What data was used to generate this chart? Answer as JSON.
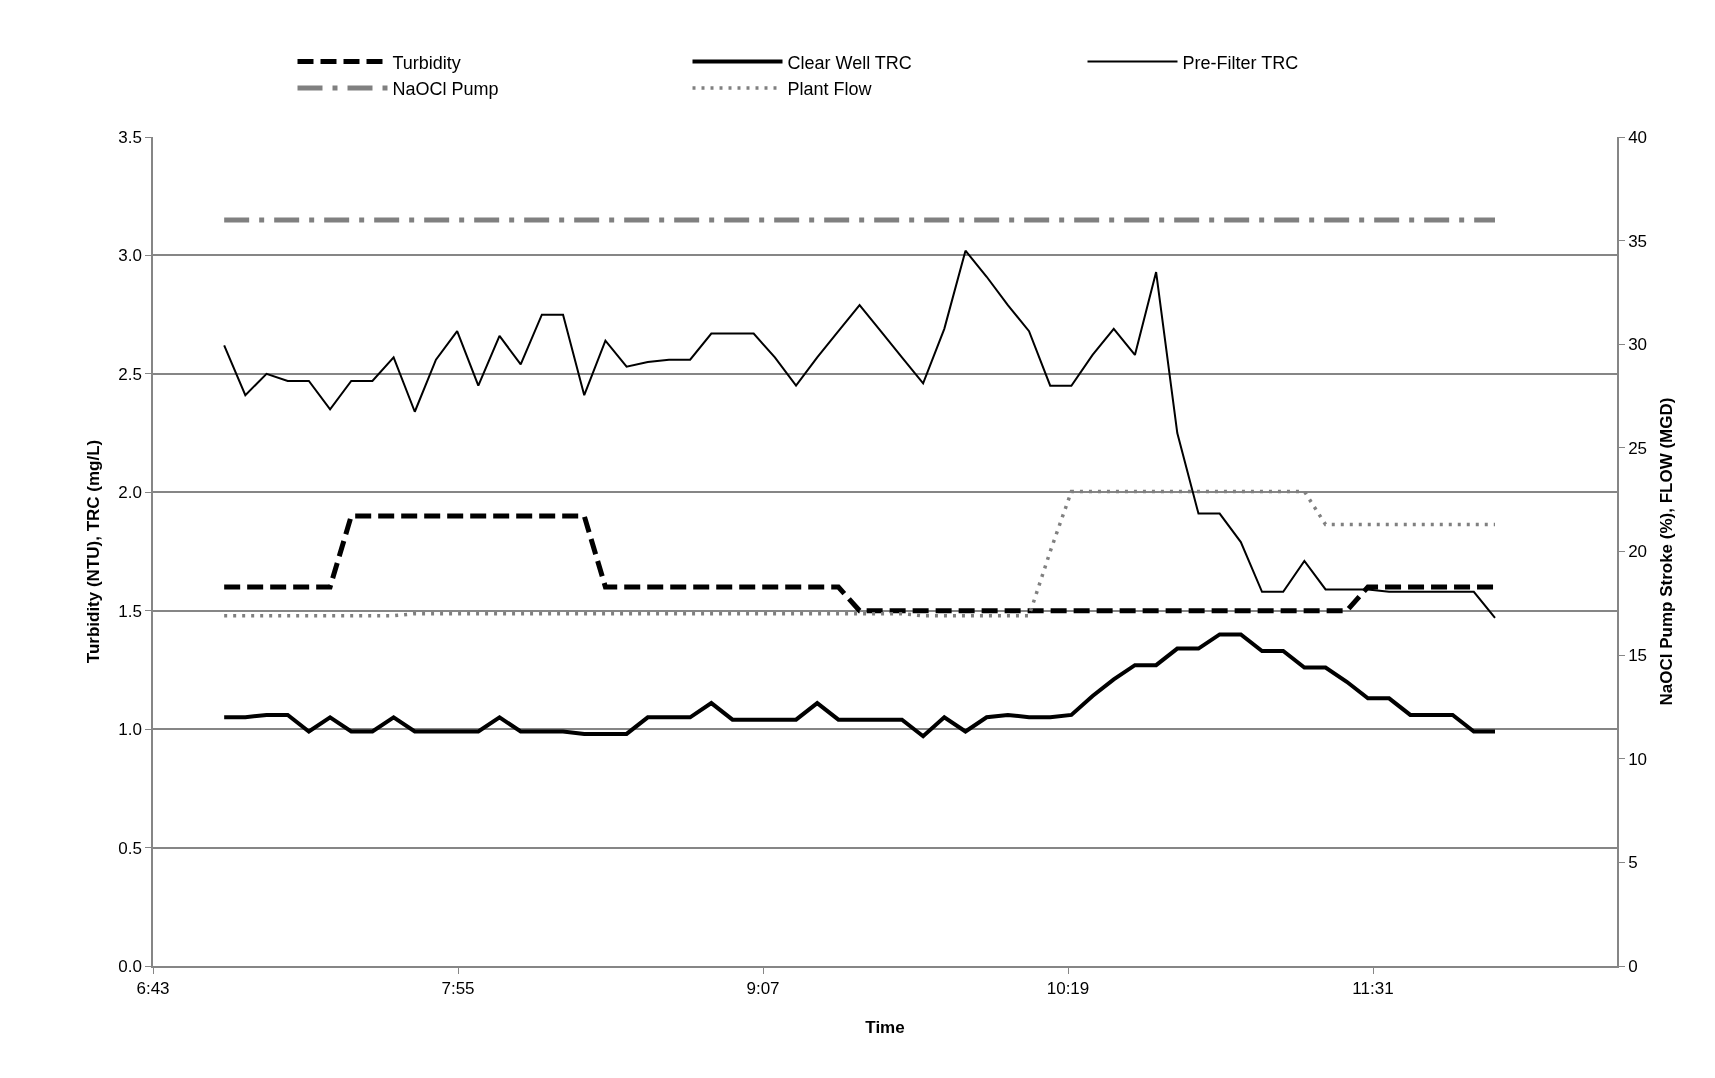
{
  "chart_data": {
    "type": "line",
    "xlabel": "Time",
    "ylabel": "Turbidity (NTU), TRC (mg/L)",
    "y2label": "NaOCl Pump Stroke (%), FLOW (MGD)",
    "x": [
      7,
      7.0833,
      7.1667,
      7.25,
      7.3333,
      7.4167,
      7.5,
      7.5833,
      7.6667,
      7.75,
      7.8333,
      7.9167,
      8,
      8.0833,
      8.1667,
      8.25,
      8.3333,
      8.4167,
      8.5,
      8.5833,
      8.6667,
      8.75,
      8.8333,
      8.9167,
      9,
      9.0833,
      9.1667,
      9.25,
      9.3333,
      9.4167,
      9.5,
      9.5833,
      9.6667,
      9.75,
      9.8333,
      9.9167,
      10,
      10.0833,
      10.1667,
      10.25,
      10.3333,
      10.4167,
      10.5,
      10.5833,
      10.6667,
      10.75,
      10.8333,
      10.9167,
      11,
      11.0833,
      11.1667,
      11.25,
      11.3333,
      11.4167,
      11.5,
      11.5833,
      11.6667,
      11.75,
      11.8333,
      11.9167,
      12
    ],
    "xlim": [
      6.72,
      12.48
    ],
    "xticks": [
      {
        "value": 6.72,
        "label": "6:43"
      },
      {
        "value": 7.92,
        "label": "7:55"
      },
      {
        "value": 9.12,
        "label": "9:07"
      },
      {
        "value": 10.32,
        "label": "10:19"
      },
      {
        "value": 11.52,
        "label": "11:31"
      }
    ],
    "ylim": [
      0,
      3.5
    ],
    "yticks": [
      {
        "value": 0,
        "label": "0.0"
      },
      {
        "value": 0.5,
        "label": "0.5"
      },
      {
        "value": 1,
        "label": "1.0"
      },
      {
        "value": 1.5,
        "label": "1.5"
      },
      {
        "value": 2,
        "label": "2.0"
      },
      {
        "value": 2.5,
        "label": "2.5"
      },
      {
        "value": 3,
        "label": "3.0"
      },
      {
        "value": 3.5,
        "label": "3.5"
      }
    ],
    "y2lim": [
      0,
      40
    ],
    "y2ticks": [
      0,
      5,
      10,
      15,
      20,
      25,
      30,
      35,
      40
    ],
    "grid": "y",
    "legend": "top",
    "marker": "none",
    "series": [
      {
        "name": "Turbidity",
        "color": "#000000",
        "line_style": "dashed",
        "values": [
          1.6,
          1.6,
          1.6,
          1.6,
          1.6,
          1.6,
          1.9,
          1.9,
          1.9,
          1.9,
          1.9,
          1.9,
          1.9,
          1.9,
          1.9,
          1.9,
          1.9,
          1.9,
          1.6,
          1.6,
          1.6,
          1.6,
          1.6,
          1.6,
          1.6,
          1.6,
          1.6,
          1.6,
          1.6,
          1.6,
          1.5,
          1.5,
          1.5,
          1.5,
          1.5,
          1.5,
          1.5,
          1.5,
          1.5,
          1.5,
          1.5,
          1.5,
          1.5,
          1.5,
          1.5,
          1.5,
          1.5,
          1.5,
          1.5,
          1.5,
          1.5,
          1.5,
          1.5,
          1.5,
          1.6,
          1.6,
          1.6,
          1.6,
          1.6,
          1.6,
          1.6
        ]
      },
      {
        "name": "Clear Well TRC",
        "color": "#000000",
        "line_style": "solid",
        "values": [
          1.05,
          1.05,
          1.06,
          1.06,
          0.99,
          1.05,
          0.99,
          0.99,
          1.05,
          0.99,
          0.99,
          0.99,
          0.99,
          1.05,
          0.99,
          0.99,
          0.99,
          0.98,
          0.98,
          0.98,
          1.05,
          1.05,
          1.05,
          1.11,
          1.04,
          1.04,
          1.04,
          1.04,
          1.11,
          1.04,
          1.04,
          1.04,
          1.04,
          0.97,
          1.05,
          0.99,
          1.05,
          1.06,
          1.05,
          1.05,
          1.06,
          1.14,
          1.21,
          1.27,
          1.27,
          1.34,
          1.34,
          1.4,
          1.4,
          1.33,
          1.33,
          1.26,
          1.26,
          1.2,
          1.13,
          1.13,
          1.06,
          1.06,
          1.06,
          0.99,
          0.99
        ]
      },
      {
        "name": "Pre-Filter TRC",
        "color": "#000000",
        "line_style": "solid",
        "values": [
          2.62,
          2.41,
          2.5,
          2.47,
          2.47,
          2.35,
          2.47,
          2.47,
          2.57,
          2.34,
          2.56,
          2.68,
          2.45,
          2.66,
          2.54,
          2.75,
          2.75,
          2.41,
          2.64,
          2.53,
          2.55,
          2.56,
          2.56,
          2.67,
          2.67,
          2.67,
          2.57,
          2.45,
          2.57,
          2.68,
          2.79,
          2.68,
          2.57,
          2.46,
          2.69,
          3.02,
          2.91,
          2.79,
          2.68,
          2.45,
          2.45,
          2.58,
          2.69,
          2.58,
          2.93,
          2.25,
          1.91,
          1.91,
          1.79,
          1.58,
          1.58,
          1.71,
          1.59,
          1.59,
          1.59,
          1.58,
          1.58,
          1.58,
          1.58,
          1.58,
          1.47
        ]
      },
      {
        "name": "NaOCl Pump",
        "color": "#808080",
        "line_style": "dashdot",
        "axis": "y2",
        "values": [
          36,
          36,
          36,
          36,
          36,
          36,
          36,
          36,
          36,
          36,
          36,
          36,
          36,
          36,
          36,
          36,
          36,
          36,
          36,
          36,
          36,
          36,
          36,
          36,
          36,
          36,
          36,
          36,
          36,
          36,
          36,
          36,
          36,
          36,
          36,
          36,
          36,
          36,
          36,
          36,
          36,
          36,
          36,
          36,
          36,
          36,
          36,
          36,
          36,
          36,
          36,
          36,
          36,
          36,
          36,
          36,
          36,
          36,
          36,
          36,
          36
        ]
      },
      {
        "name": "Plant Flow",
        "color": "#808080",
        "line_style": "dotted",
        "axis": "y2",
        "values": [
          16.9,
          16.9,
          16.9,
          16.9,
          16.9,
          16.9,
          16.9,
          16.9,
          16.9,
          17.0,
          17.0,
          17.0,
          17.0,
          17.0,
          17.0,
          17.0,
          17.0,
          17.0,
          17.0,
          17.0,
          17.0,
          17.0,
          17.0,
          17.0,
          17.0,
          17.0,
          17.0,
          17.0,
          17.0,
          17.0,
          17.0,
          17.0,
          17.0,
          16.9,
          16.9,
          16.9,
          16.9,
          16.9,
          16.9,
          20.0,
          22.9,
          22.9,
          22.9,
          22.9,
          22.9,
          22.9,
          22.9,
          22.9,
          22.9,
          22.9,
          22.9,
          22.9,
          21.3,
          21.3,
          21.3,
          21.3,
          21.3,
          21.3,
          21.3,
          21.3,
          21.3
        ]
      }
    ]
  }
}
